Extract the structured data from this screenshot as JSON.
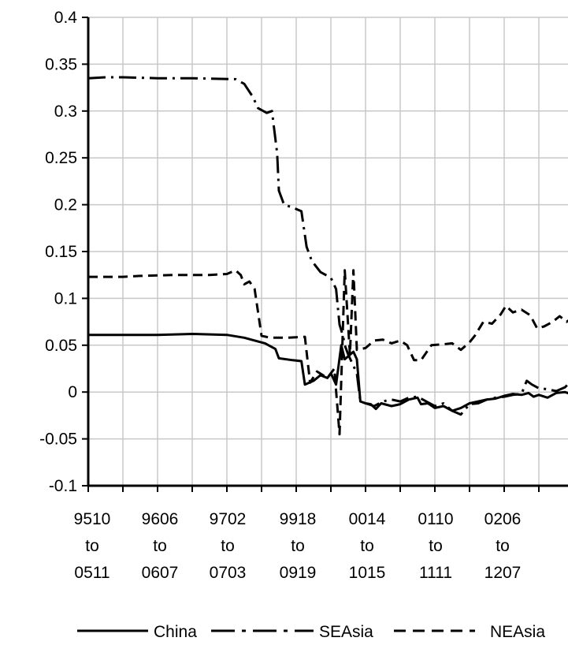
{
  "chart_data": {
    "type": "line",
    "title": "",
    "xlabel": "",
    "ylabel": "",
    "ylim": [
      -0.1,
      0.4
    ],
    "y_ticks": [
      "0.4",
      "0.35",
      "0.3",
      "0.25",
      "0.2",
      "0.15",
      "0.1",
      "0.05",
      "0",
      "-0.05",
      "-0.1"
    ],
    "x_ticks": [
      {
        "lines": [
          "9510",
          "to",
          "0511"
        ]
      },
      {
        "lines": [
          "9606",
          "to",
          "0607"
        ]
      },
      {
        "lines": [
          "9702",
          "to",
          "0703"
        ]
      },
      {
        "lines": [
          "9918",
          "to",
          "0919"
        ]
      },
      {
        "lines": [
          "0014",
          "to",
          "1015"
        ]
      },
      {
        "lines": [
          "0110",
          "to",
          "1111"
        ]
      },
      {
        "lines": [
          "0206",
          "to",
          "1207"
        ]
      }
    ],
    "grid": true,
    "legend_position": "bottom",
    "series": [
      {
        "name": "China",
        "style": "solid",
        "color": "#000000",
        "points": [
          [
            0,
            0.061
          ],
          [
            2,
            0.061
          ],
          [
            4,
            0.061
          ],
          [
            6,
            0.062
          ],
          [
            8,
            0.061
          ],
          [
            9,
            0.058
          ],
          [
            10.2,
            0.052
          ],
          [
            10.8,
            0.046
          ],
          [
            11.0,
            0.036
          ],
          [
            11.8,
            0.034
          ],
          [
            12.3,
            0.033
          ],
          [
            12.5,
            0.008
          ],
          [
            13.0,
            0.012
          ],
          [
            13.4,
            0.018
          ],
          [
            13.8,
            0.015
          ],
          [
            14.0,
            0.02
          ],
          [
            14.3,
            0.008
          ],
          [
            14.6,
            0.05
          ],
          [
            14.8,
            0.035
          ],
          [
            15.3,
            0.043
          ],
          [
            15.5,
            0.035
          ],
          [
            15.7,
            -0.01
          ],
          [
            16.0,
            -0.012
          ],
          [
            16.3,
            -0.013
          ],
          [
            16.6,
            -0.018
          ],
          [
            16.9,
            -0.012
          ],
          [
            17.5,
            -0.015
          ],
          [
            18.0,
            -0.013
          ],
          [
            18.5,
            -0.008
          ],
          [
            19.0,
            -0.006
          ],
          [
            19.2,
            -0.013
          ],
          [
            19.6,
            -0.012
          ],
          [
            20.0,
            -0.017
          ],
          [
            20.5,
            -0.015
          ],
          [
            21.0,
            -0.02
          ],
          [
            21.5,
            -0.017
          ],
          [
            22.0,
            -0.012
          ],
          [
            22.5,
            -0.01
          ],
          [
            23.0,
            -0.008
          ],
          [
            23.5,
            -0.007
          ],
          [
            24.0,
            -0.004
          ],
          [
            24.5,
            -0.002
          ],
          [
            25.0,
            -0.003
          ],
          [
            25.4,
            -0.001
          ],
          [
            25.7,
            -0.005
          ],
          [
            26.0,
            -0.003
          ],
          [
            26.5,
            -0.006
          ],
          [
            27.0,
            -0.001
          ],
          [
            27.5,
            0.0
          ],
          [
            28.0,
            -0.003
          ],
          [
            28.5,
            -0.002
          ],
          [
            28.8,
            -0.005
          ],
          [
            29.0,
            -0.001
          ]
        ]
      },
      {
        "name": "SEAsia",
        "style": "dash-dot",
        "color": "#000000",
        "points": [
          [
            0,
            0.335
          ],
          [
            1,
            0.336
          ],
          [
            2,
            0.336
          ],
          [
            4,
            0.335
          ],
          [
            6,
            0.335
          ],
          [
            8.5,
            0.334
          ],
          [
            9.0,
            0.329
          ],
          [
            9.5,
            0.315
          ],
          [
            9.8,
            0.303
          ],
          [
            10.3,
            0.298
          ],
          [
            10.6,
            0.3
          ],
          [
            10.9,
            0.255
          ],
          [
            11.0,
            0.215
          ],
          [
            11.3,
            0.2
          ],
          [
            11.8,
            0.197
          ],
          [
            12.3,
            0.193
          ],
          [
            12.6,
            0.155
          ],
          [
            12.9,
            0.14
          ],
          [
            13.4,
            0.128
          ],
          [
            14.0,
            0.122
          ],
          [
            14.3,
            0.11
          ],
          [
            14.5,
            0.072
          ],
          [
            14.7,
            0.06
          ],
          [
            14.8,
            0.05
          ],
          [
            15.0,
            0.04
          ],
          [
            15.5,
            0.02
          ],
          [
            15.7,
            -0.01
          ],
          [
            16.0,
            -0.012
          ],
          [
            16.5,
            -0.015
          ],
          [
            17.0,
            -0.01
          ],
          [
            17.5,
            -0.008
          ],
          [
            18.0,
            -0.01
          ],
          [
            18.5,
            -0.006
          ],
          [
            19.0,
            -0.005
          ],
          [
            19.5,
            -0.01
          ],
          [
            20.0,
            -0.015
          ],
          [
            20.5,
            -0.012
          ],
          [
            21.0,
            -0.02
          ],
          [
            21.5,
            -0.024
          ],
          [
            22.0,
            -0.013
          ],
          [
            22.5,
            -0.012
          ],
          [
            23.0,
            -0.008
          ],
          [
            23.5,
            -0.006
          ],
          [
            24.0,
            -0.005
          ],
          [
            24.5,
            -0.003
          ],
          [
            25.0,
            -0.002
          ],
          [
            25.3,
            0.012
          ],
          [
            25.6,
            0.008
          ],
          [
            26.0,
            0.004
          ],
          [
            26.5,
            0.003
          ],
          [
            27.0,
            0.001
          ],
          [
            27.5,
            0.005
          ],
          [
            28.0,
            0.014
          ],
          [
            28.5,
            0.013
          ],
          [
            29.0,
            0.016
          ]
        ]
      },
      {
        "name": "NEAsia",
        "style": "dashed",
        "color": "#000000",
        "points": [
          [
            0,
            0.123
          ],
          [
            2,
            0.123
          ],
          [
            3,
            0.124
          ],
          [
            5,
            0.125
          ],
          [
            7,
            0.125
          ],
          [
            8,
            0.126
          ],
          [
            8.5,
            0.13
          ],
          [
            8.8,
            0.125
          ],
          [
            9.0,
            0.115
          ],
          [
            9.3,
            0.118
          ],
          [
            9.6,
            0.11
          ],
          [
            9.8,
            0.085
          ],
          [
            10.0,
            0.06
          ],
          [
            10.5,
            0.058
          ],
          [
            11.5,
            0.058
          ],
          [
            12.5,
            0.059
          ],
          [
            12.8,
            0.01
          ],
          [
            13.2,
            0.022
          ],
          [
            13.8,
            0.015
          ],
          [
            14.0,
            0.02
          ],
          [
            14.2,
            0.025
          ],
          [
            14.5,
            -0.045
          ],
          [
            14.8,
            0.13
          ],
          [
            15.1,
            0.04
          ],
          [
            15.3,
            0.13
          ],
          [
            15.5,
            0.045
          ],
          [
            16.0,
            0.047
          ],
          [
            16.5,
            0.055
          ],
          [
            17.0,
            0.056
          ],
          [
            17.5,
            0.052
          ],
          [
            18.0,
            0.055
          ],
          [
            18.4,
            0.05
          ],
          [
            18.8,
            0.034
          ],
          [
            19.2,
            0.034
          ],
          [
            19.5,
            0.042
          ],
          [
            19.8,
            0.05
          ],
          [
            20.5,
            0.051
          ],
          [
            21.0,
            0.052
          ],
          [
            21.5,
            0.045
          ],
          [
            22.0,
            0.053
          ],
          [
            22.3,
            0.06
          ],
          [
            22.8,
            0.075
          ],
          [
            23.3,
            0.073
          ],
          [
            23.8,
            0.083
          ],
          [
            24.1,
            0.092
          ],
          [
            24.5,
            0.085
          ],
          [
            25.0,
            0.088
          ],
          [
            25.5,
            0.082
          ],
          [
            25.9,
            0.068
          ],
          [
            26.3,
            0.07
          ],
          [
            26.8,
            0.075
          ],
          [
            27.2,
            0.081
          ],
          [
            27.6,
            0.075
          ],
          [
            28.0,
            0.08
          ],
          [
            28.5,
            0.068
          ],
          [
            29.0,
            0.062
          ]
        ]
      }
    ]
  }
}
